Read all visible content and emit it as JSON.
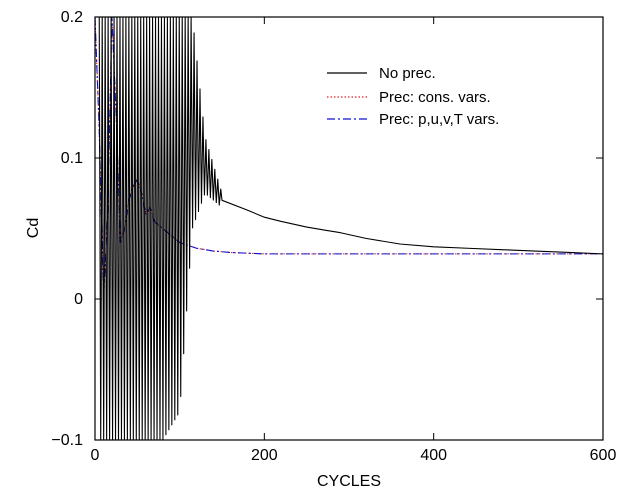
{
  "chart_data": {
    "type": "line",
    "title": "",
    "xlabel": "CYCLES",
    "ylabel": "Cd",
    "xlim": [
      0,
      600
    ],
    "ylim": [
      -0.1,
      0.2
    ],
    "x_ticks": [
      0,
      200,
      400,
      600
    ],
    "x_tick_labels": [
      "0",
      "200",
      "400",
      "600"
    ],
    "y_ticks": [
      -0.1,
      0,
      0.1,
      0.2
    ],
    "y_tick_labels": [
      "−0.1",
      "0",
      "0.1",
      "0.2"
    ],
    "grid": false,
    "legend_position": "top-right",
    "series": [
      {
        "name": "No prec.",
        "color": "#000000",
        "dash": "solid",
        "oscillation": {
          "x": [
            5,
            40,
            80,
            100,
            115,
            130,
            150
          ],
          "upper": [
            0.2,
            0.2,
            0.2,
            0.2,
            0.2,
            0.115,
            0.075
          ],
          "lower": [
            -0.1,
            -0.1,
            -0.1,
            -0.08,
            0.05,
            0.075,
            0.065
          ],
          "period": 3.5
        },
        "x": [
          150,
          180,
          200,
          220,
          250,
          270,
          290,
          320,
          360,
          400,
          440,
          480,
          520,
          560,
          600
        ],
        "y": [
          0.07,
          0.063,
          0.058,
          0.055,
          0.051,
          0.049,
          0.047,
          0.043,
          0.039,
          0.037,
          0.036,
          0.035,
          0.034,
          0.033,
          0.032
        ]
      },
      {
        "name": "Prec: cons. vars.",
        "color": "#e02020",
        "dash": "dotted",
        "x": [
          0,
          5,
          10,
          15,
          20,
          25,
          30,
          35,
          40,
          45,
          50,
          55,
          60,
          65,
          70,
          80,
          90,
          100,
          110,
          120,
          140,
          160,
          200,
          300,
          400,
          500,
          600
        ],
        "y": [
          0.2,
          0.12,
          0.0,
          0.06,
          0.2,
          0.13,
          0.04,
          0.05,
          0.07,
          0.08,
          0.085,
          0.075,
          0.06,
          0.065,
          0.055,
          0.05,
          0.045,
          0.04,
          0.038,
          0.036,
          0.034,
          0.033,
          0.032,
          0.032,
          0.032,
          0.032,
          0.032
        ]
      },
      {
        "name": "Prec: p,u,v,T vars.",
        "color": "#1010d0",
        "dash": "dashdot",
        "x": [
          0,
          5,
          10,
          15,
          20,
          25,
          30,
          35,
          40,
          45,
          50,
          55,
          60,
          65,
          70,
          80,
          90,
          100,
          110,
          120,
          140,
          160,
          200,
          300,
          400,
          500,
          600
        ],
        "y": [
          0.2,
          0.12,
          0.0,
          0.06,
          0.2,
          0.13,
          0.04,
          0.05,
          0.07,
          0.08,
          0.085,
          0.075,
          0.06,
          0.065,
          0.055,
          0.05,
          0.045,
          0.04,
          0.038,
          0.036,
          0.034,
          0.033,
          0.032,
          0.032,
          0.032,
          0.032,
          0.032
        ]
      }
    ]
  }
}
